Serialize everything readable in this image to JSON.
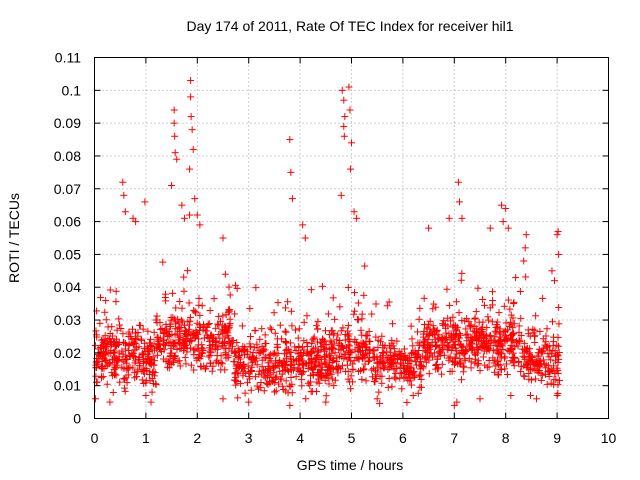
{
  "chart_data": {
    "type": "scatter",
    "title": "Day 174 of 2011, Rate Of TEC Index for receiver hil1",
    "xlabel": "GPS time / hours",
    "ylabel": "ROTI / TECUs",
    "xlim": [
      0,
      10
    ],
    "ylim": [
      0,
      0.11
    ],
    "x_ticks": [
      "0",
      "1",
      "2",
      "3",
      "4",
      "5",
      "6",
      "7",
      "8",
      "9",
      "10"
    ],
    "y_ticks": [
      "0",
      "0.01",
      "0.02",
      "0.03",
      "0.04",
      "0.05",
      "0.06",
      "0.07",
      "0.08",
      "0.09",
      "0.1",
      "0.11"
    ],
    "grid": true,
    "marker": "+",
    "color": "#ff0000",
    "x_range_of_points": [
      0,
      9.05
    ],
    "series": [
      {
        "name": "hil1",
        "points": [
          [
            0.55,
            0.072
          ],
          [
            0.57,
            0.068
          ],
          [
            0.6,
            0.063
          ],
          [
            0.75,
            0.061
          ],
          [
            0.8,
            0.06
          ],
          [
            0.98,
            0.066
          ],
          [
            1.55,
            0.094
          ],
          [
            1.55,
            0.09
          ],
          [
            1.56,
            0.086
          ],
          [
            1.57,
            0.081
          ],
          [
            1.6,
            0.079
          ],
          [
            1.5,
            0.071
          ],
          [
            1.7,
            0.065
          ],
          [
            1.75,
            0.061
          ],
          [
            1.85,
            0.062
          ],
          [
            1.87,
            0.103
          ],
          [
            1.87,
            0.098
          ],
          [
            1.88,
            0.092
          ],
          [
            1.9,
            0.088
          ],
          [
            1.92,
            0.082
          ],
          [
            1.85,
            0.076
          ],
          [
            1.95,
            0.067
          ],
          [
            2.0,
            0.062
          ],
          [
            2.05,
            0.059
          ],
          [
            2.5,
            0.055
          ],
          [
            3.8,
            0.085
          ],
          [
            3.82,
            0.075
          ],
          [
            3.85,
            0.067
          ],
          [
            4.05,
            0.059
          ],
          [
            4.1,
            0.055
          ],
          [
            4.82,
            0.1
          ],
          [
            4.85,
            0.097
          ],
          [
            4.87,
            0.092
          ],
          [
            4.85,
            0.089
          ],
          [
            4.86,
            0.086
          ],
          [
            4.95,
            0.101
          ],
          [
            4.97,
            0.094
          ],
          [
            5.0,
            0.084
          ],
          [
            4.98,
            0.076
          ],
          [
            4.8,
            0.068
          ],
          [
            5.05,
            0.063
          ],
          [
            5.1,
            0.061
          ],
          [
            6.5,
            0.058
          ],
          [
            6.9,
            0.061
          ],
          [
            7.08,
            0.072
          ],
          [
            7.1,
            0.066
          ],
          [
            7.15,
            0.061
          ],
          [
            7.7,
            0.058
          ],
          [
            7.92,
            0.065
          ],
          [
            8.0,
            0.064
          ],
          [
            7.95,
            0.06
          ],
          [
            8.05,
            0.058
          ],
          [
            8.4,
            0.056
          ],
          [
            8.38,
            0.052
          ],
          [
            8.35,
            0.048
          ],
          [
            8.9,
            0.045
          ],
          [
            8.95,
            0.042
          ],
          [
            9.02,
            0.057
          ],
          [
            9.0,
            0.056
          ],
          [
            9.03,
            0.05
          ],
          [
            0.02,
            0.006
          ],
          [
            0.3,
            0.005
          ],
          [
            1.0,
            0.007
          ],
          [
            2.5,
            0.006
          ],
          [
            3.0,
            0.005
          ],
          [
            3.8,
            0.004
          ],
          [
            4.5,
            0.005
          ],
          [
            5.5,
            0.006
          ],
          [
            6.2,
            0.007
          ],
          [
            7.0,
            0.004
          ],
          [
            7.05,
            0.005
          ],
          [
            7.5,
            0.006
          ],
          [
            8.1,
            0.007
          ],
          [
            8.6,
            0.006
          ],
          [
            9.0,
            0.007
          ]
        ]
      }
    ]
  }
}
